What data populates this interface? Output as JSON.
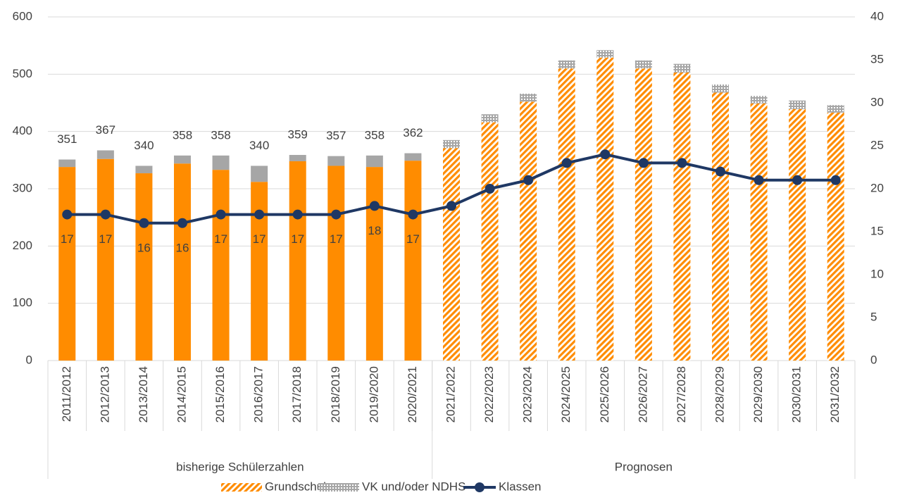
{
  "chart_data": {
    "type": "bar",
    "categories": [
      "2011/2012",
      "2012/2013",
      "2013/2014",
      "2014/2015",
      "2015/2016",
      "2016/2017",
      "2017/2018",
      "2018/2019",
      "2019/2020",
      "2020/2021",
      "2021/2022",
      "2022/2023",
      "2023/2024",
      "2024/2025",
      "2025/2026",
      "2026/2027",
      "2027/2028",
      "2028/2029",
      "2029/2030",
      "2030/2031",
      "2031/2032"
    ],
    "groups": [
      {
        "name": "bisherige Schülerzahlen",
        "count": 10
      },
      {
        "name": "Prognosen",
        "count": 11
      }
    ],
    "series": [
      {
        "name": "Grundschule",
        "color": "#ff8c00",
        "values": [
          338,
          352,
          327,
          344,
          333,
          312,
          348,
          340,
          338,
          349,
          371,
          416,
          452,
          510,
          529,
          510,
          503,
          468,
          449,
          439,
          433
        ]
      },
      {
        "name": "VK und/oder NDHS",
        "color": "#a6a6a6",
        "values": [
          13,
          15,
          13,
          14,
          25,
          28,
          11,
          17,
          20,
          13,
          14,
          14,
          14,
          14,
          13,
          14,
          15,
          14,
          13,
          15,
          13
        ]
      },
      {
        "name": "Klassen",
        "color": "#1f3864",
        "axis": "y2",
        "type": "line",
        "values": [
          17,
          17,
          16,
          16,
          17,
          17,
          17,
          17,
          18,
          17,
          18,
          20,
          21,
          23,
          24,
          23,
          23,
          22,
          21,
          21,
          21
        ],
        "value_labels": [
          "17",
          "17",
          "16",
          "16",
          "17",
          "17",
          "17",
          "17",
          "18",
          "17",
          null,
          null,
          null,
          null,
          null,
          null,
          null,
          null,
          null,
          null,
          null
        ]
      }
    ],
    "totals": [
      351,
      367,
      340,
      358,
      358,
      340,
      359,
      357,
      358,
      362,
      null,
      null,
      null,
      null,
      null,
      null,
      null,
      null,
      null,
      null,
      null
    ],
    "ylim": [
      0,
      600
    ],
    "yticks": [
      0,
      100,
      200,
      300,
      400,
      500,
      600
    ],
    "y2lim": [
      0,
      40
    ],
    "y2ticks": [
      0,
      5,
      10,
      15,
      20,
      25,
      30,
      35,
      40
    ],
    "grid": true,
    "legend": "bottom"
  }
}
